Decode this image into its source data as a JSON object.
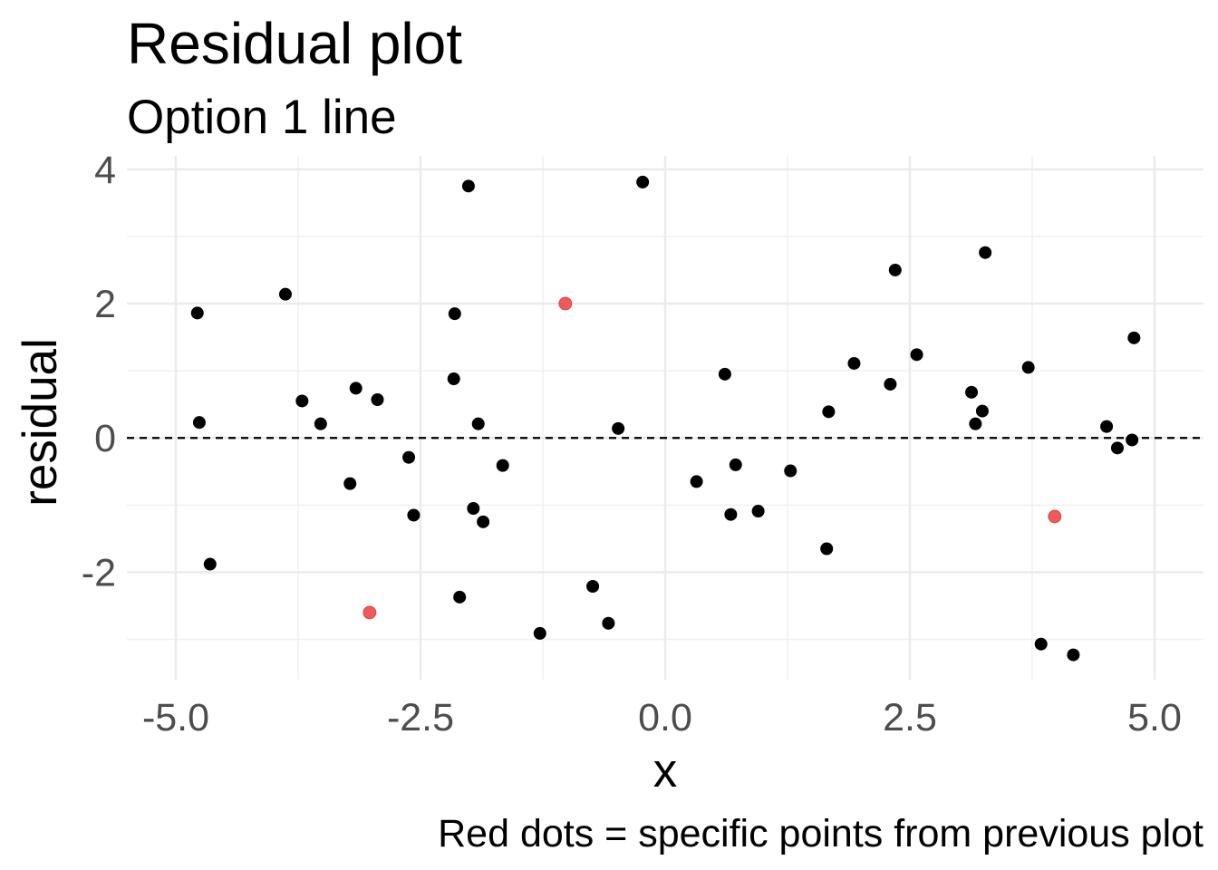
{
  "chart_data": {
    "type": "scatter",
    "title": "Residual plot",
    "subtitle": "Option 1 line",
    "xlabel": "x",
    "ylabel": "residual",
    "caption": "Red dots = specific points from previous plot",
    "xlim": [
      -5.5,
      5.5
    ],
    "ylim": [
      -3.6,
      4.2
    ],
    "x_ticks": [
      -5.0,
      -2.5,
      0.0,
      2.5,
      5.0
    ],
    "x_tick_labels": [
      "-5.0",
      "-2.5",
      "0.0",
      "2.5",
      "5.0"
    ],
    "y_ticks": [
      -2,
      0,
      2,
      4
    ],
    "y_tick_labels": [
      "-2",
      "0",
      "2",
      "4"
    ],
    "grid": true,
    "reference_line": {
      "y": 0,
      "style": "dashed",
      "color": "#000000"
    },
    "series": [
      {
        "color": "#000000",
        "points": [
          {
            "x": -4.78,
            "y": 1.86
          },
          {
            "x": -4.76,
            "y": 0.23
          },
          {
            "x": -4.65,
            "y": -1.88
          },
          {
            "x": -3.88,
            "y": 2.14
          },
          {
            "x": -3.71,
            "y": 0.55
          },
          {
            "x": -3.52,
            "y": 0.21
          },
          {
            "x": -3.22,
            "y": -0.68
          },
          {
            "x": -3.16,
            "y": 0.74
          },
          {
            "x": -2.94,
            "y": 0.57
          },
          {
            "x": -2.62,
            "y": -0.29
          },
          {
            "x": -2.57,
            "y": -1.15
          },
          {
            "x": -2.16,
            "y": 0.88
          },
          {
            "x": -2.15,
            "y": 1.85
          },
          {
            "x": -2.1,
            "y": -2.37
          },
          {
            "x": -2.01,
            "y": 3.75
          },
          {
            "x": -1.96,
            "y": -1.05
          },
          {
            "x": -1.91,
            "y": 0.21
          },
          {
            "x": -1.86,
            "y": -1.25
          },
          {
            "x": -1.66,
            "y": -0.41
          },
          {
            "x": -1.28,
            "y": -2.91
          },
          {
            "x": -0.74,
            "y": -2.21
          },
          {
            "x": -0.58,
            "y": -2.76
          },
          {
            "x": -0.48,
            "y": 0.14
          },
          {
            "x": -0.23,
            "y": 3.81
          },
          {
            "x": 0.32,
            "y": -0.65
          },
          {
            "x": 0.61,
            "y": 0.95
          },
          {
            "x": 0.67,
            "y": -1.14
          },
          {
            "x": 0.72,
            "y": -0.4
          },
          {
            "x": 0.95,
            "y": -1.09
          },
          {
            "x": 1.28,
            "y": -0.49
          },
          {
            "x": 1.65,
            "y": -1.65
          },
          {
            "x": 1.67,
            "y": 0.39
          },
          {
            "x": 1.93,
            "y": 1.11
          },
          {
            "x": 2.3,
            "y": 0.8
          },
          {
            "x": 2.35,
            "y": 2.5
          },
          {
            "x": 2.57,
            "y": 1.24
          },
          {
            "x": 3.13,
            "y": 0.68
          },
          {
            "x": 3.17,
            "y": 0.21
          },
          {
            "x": 3.24,
            "y": 0.4
          },
          {
            "x": 3.27,
            "y": 2.76
          },
          {
            "x": 3.71,
            "y": 1.05
          },
          {
            "x": 3.84,
            "y": -3.07
          },
          {
            "x": 4.17,
            "y": -3.23
          },
          {
            "x": 4.51,
            "y": 0.17
          },
          {
            "x": 4.62,
            "y": -0.15
          },
          {
            "x": 4.77,
            "y": -0.03
          },
          {
            "x": 4.79,
            "y": 1.49
          }
        ]
      },
      {
        "color": "#f05a5a",
        "points": [
          {
            "x": -1.02,
            "y": 2.0
          },
          {
            "x": -3.02,
            "y": -2.6
          },
          {
            "x": 3.98,
            "y": -1.17
          }
        ]
      }
    ]
  }
}
